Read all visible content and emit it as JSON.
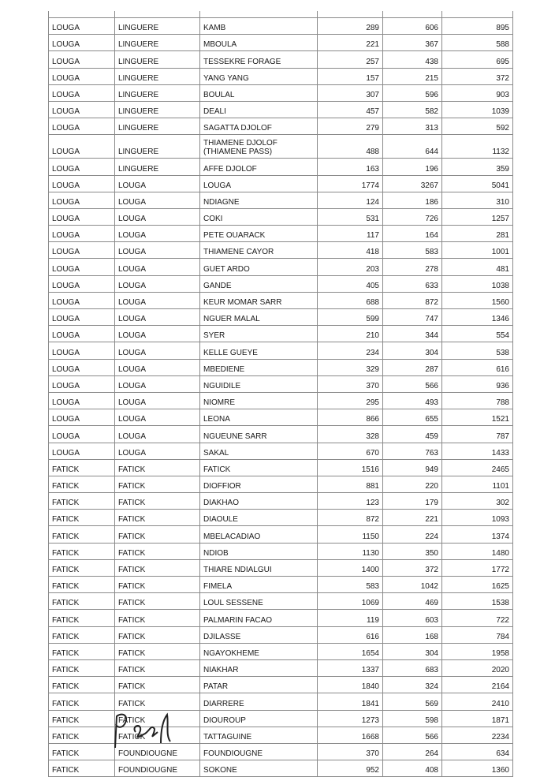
{
  "rows": [
    [
      "LOUGA",
      "LINGUERE",
      "KAMB",
      "289",
      "606",
      "895"
    ],
    [
      "LOUGA",
      "LINGUERE",
      "MBOULA",
      "221",
      "367",
      "588"
    ],
    [
      "LOUGA",
      "LINGUERE",
      "TESSEKRE FORAGE",
      "257",
      "438",
      "695"
    ],
    [
      "LOUGA",
      "LINGUERE",
      "YANG YANG",
      "157",
      "215",
      "372"
    ],
    [
      "LOUGA",
      "LINGUERE",
      "BOULAL",
      "307",
      "596",
      "903"
    ],
    [
      "LOUGA",
      "LINGUERE",
      "DEALI",
      "457",
      "582",
      "1039"
    ],
    [
      "LOUGA",
      "LINGUERE",
      "SAGATTA DJOLOF",
      "279",
      "313",
      "592"
    ],
    [
      "LOUGA",
      "LINGUERE",
      "THIAMENE DJOLOF (THIAMENE PASS)",
      "488",
      "644",
      "1132"
    ],
    [
      "LOUGA",
      "LINGUERE",
      "AFFE DJOLOF",
      "163",
      "196",
      "359"
    ],
    [
      "LOUGA",
      "LOUGA",
      "LOUGA",
      "1774",
      "3267",
      "5041"
    ],
    [
      "LOUGA",
      "LOUGA",
      "NDIAGNE",
      "124",
      "186",
      "310"
    ],
    [
      "LOUGA",
      "LOUGA",
      "COKI",
      "531",
      "726",
      "1257"
    ],
    [
      "LOUGA",
      "LOUGA",
      "PETE OUARACK",
      "117",
      "164",
      "281"
    ],
    [
      "LOUGA",
      "LOUGA",
      "THIAMENE CAYOR",
      "418",
      "583",
      "1001"
    ],
    [
      "LOUGA",
      "LOUGA",
      "GUET ARDO",
      "203",
      "278",
      "481"
    ],
    [
      "LOUGA",
      "LOUGA",
      "GANDE",
      "405",
      "633",
      "1038"
    ],
    [
      "LOUGA",
      "LOUGA",
      "KEUR MOMAR SARR",
      "688",
      "872",
      "1560"
    ],
    [
      "LOUGA",
      "LOUGA",
      "NGUER MALAL",
      "599",
      "747",
      "1346"
    ],
    [
      "LOUGA",
      "LOUGA",
      "SYER",
      "210",
      "344",
      "554"
    ],
    [
      "LOUGA",
      "LOUGA",
      "KELLE GUEYE",
      "234",
      "304",
      "538"
    ],
    [
      "LOUGA",
      "LOUGA",
      "MBEDIENE",
      "329",
      "287",
      "616"
    ],
    [
      "LOUGA",
      "LOUGA",
      "NGUIDILE",
      "370",
      "566",
      "936"
    ],
    [
      "LOUGA",
      "LOUGA",
      "NIOMRE",
      "295",
      "493",
      "788"
    ],
    [
      "LOUGA",
      "LOUGA",
      "LEONA",
      "866",
      "655",
      "1521"
    ],
    [
      "LOUGA",
      "LOUGA",
      "NGUEUNE SARR",
      "328",
      "459",
      "787"
    ],
    [
      "LOUGA",
      "LOUGA",
      "SAKAL",
      "670",
      "763",
      "1433"
    ],
    [
      "FATICK",
      "FATICK",
      "FATICK",
      "1516",
      "949",
      "2465"
    ],
    [
      "FATICK",
      "FATICK",
      "DIOFFIOR",
      "881",
      "220",
      "1101"
    ],
    [
      "FATICK",
      "FATICK",
      "DIAKHAO",
      "123",
      "179",
      "302"
    ],
    [
      "FATICK",
      "FATICK",
      "DIAOULE",
      "872",
      "221",
      "1093"
    ],
    [
      "FATICK",
      "FATICK",
      "MBELACADIAO",
      "1150",
      "224",
      "1374"
    ],
    [
      "FATICK",
      "FATICK",
      "NDIOB",
      "1130",
      "350",
      "1480"
    ],
    [
      "FATICK",
      "FATICK",
      "THIARE NDIALGUI",
      "1400",
      "372",
      "1772"
    ],
    [
      "FATICK",
      "FATICK",
      "FIMELA",
      "583",
      "1042",
      "1625"
    ],
    [
      "FATICK",
      "FATICK",
      "LOUL SESSENE",
      "1069",
      "469",
      "1538"
    ],
    [
      "FATICK",
      "FATICK",
      "PALMARIN FACAO",
      "119",
      "603",
      "722"
    ],
    [
      "FATICK",
      "FATICK",
      "DJILASSE",
      "616",
      "168",
      "784"
    ],
    [
      "FATICK",
      "FATICK",
      "NGAYOKHEME",
      "1654",
      "304",
      "1958"
    ],
    [
      "FATICK",
      "FATICK",
      "NIAKHAR",
      "1337",
      "683",
      "2020"
    ],
    [
      "FATICK",
      "FATICK",
      "PATAR",
      "1840",
      "324",
      "2164"
    ],
    [
      "FATICK",
      "FATICK",
      "DIARRERE",
      "1841",
      "569",
      "2410"
    ],
    [
      "FATICK",
      "FATICK",
      "DIOUROUP",
      "1273",
      "598",
      "1871"
    ],
    [
      "FATICK",
      "FATICK",
      "TATTAGUINE",
      "1668",
      "566",
      "2234"
    ],
    [
      "FATICK",
      "FOUNDIOUGNE",
      "FOUNDIOUGNE",
      "370",
      "264",
      "634"
    ],
    [
      "FATICK",
      "FOUNDIOUGNE",
      "SOKONE",
      "952",
      "408",
      "1360"
    ]
  ],
  "signature": "handwritten-initials"
}
